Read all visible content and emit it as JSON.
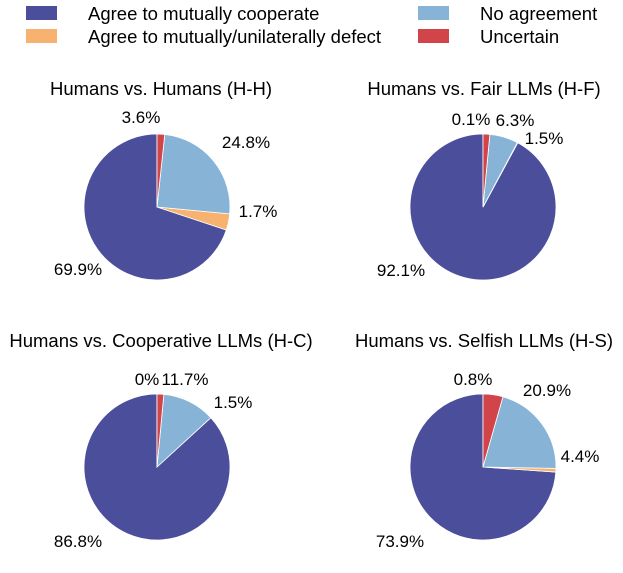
{
  "legend": {
    "items": [
      {
        "label": "Agree to mutually cooperate",
        "color": "#4a4e9b"
      },
      {
        "label": "Agree to mutually/unilaterally defect",
        "color": "#f7b26f"
      },
      {
        "label": "No agreement",
        "color": "#87b4d6"
      },
      {
        "label": "Uncertain",
        "color": "#d1444a"
      }
    ]
  },
  "chart_data": [
    {
      "type": "pie",
      "title": "Humans vs. Humans (H-H)",
      "labels": [
        "Agree to mutually cooperate",
        "Agree to mutually/unilaterally defect",
        "No agreement",
        "Uncertain"
      ],
      "values": [
        69.9,
        3.6,
        24.8,
        1.7
      ],
      "value_labels": [
        "69.9%",
        "3.6%",
        "24.8%",
        "1.7%"
      ]
    },
    {
      "type": "pie",
      "title": "Humans vs. Fair LLMs (H-F)",
      "labels": [
        "Agree to mutually cooperate",
        "Agree to mutually/unilaterally defect",
        "No agreement",
        "Uncertain"
      ],
      "values": [
        92.1,
        0.1,
        6.3,
        1.5
      ],
      "value_labels": [
        "92.1%",
        "0.1%",
        "6.3%",
        "1.5%"
      ]
    },
    {
      "type": "pie",
      "title": "Humans vs. Cooperative LLMs (H-C)",
      "labels": [
        "Agree to mutually cooperate",
        "Agree to mutually/unilaterally defect",
        "No agreement",
        "Uncertain"
      ],
      "values": [
        86.8,
        0,
        11.7,
        1.5
      ],
      "value_labels": [
        "86.8%",
        "0%",
        "11.7%",
        "1.5%"
      ]
    },
    {
      "type": "pie",
      "title": "Humans vs. Selfish LLMs (H-S)",
      "labels": [
        "Agree to mutually cooperate",
        "Agree to mutually/unilaterally defect",
        "No agreement",
        "Uncertain"
      ],
      "values": [
        73.9,
        0.8,
        20.9,
        4.4
      ],
      "value_labels": [
        "73.9%",
        "0.8%",
        "20.9%",
        "4.4%"
      ]
    }
  ]
}
